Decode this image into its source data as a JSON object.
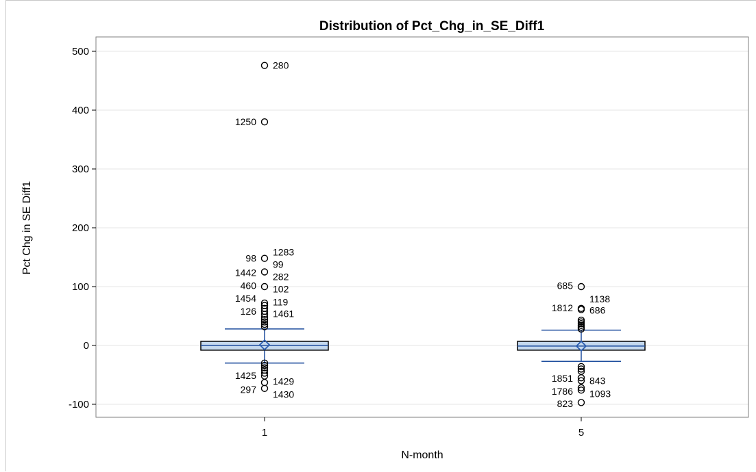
{
  "chart_data": {
    "type": "box",
    "title": "Distribution of Pct_Chg_in_SE_Diff1",
    "xlabel": "N-month",
    "ylabel": "Pct Chg in SE Diff1",
    "ylim": [
      -110,
      510
    ],
    "yticks": [
      -100,
      0,
      100,
      200,
      300,
      400,
      500
    ],
    "grid": "horizontal",
    "colors": {
      "box_fill": "#c5d9ee",
      "box_edge": "#000000",
      "whisker": "#1f4e9e",
      "mean_marker": "#2a5db0",
      "outlier": "#000000",
      "gridline": "#e6e6e6",
      "plot_border": "#7f7f7f"
    },
    "categories": [
      "1",
      "5"
    ],
    "boxes": [
      {
        "category": "1",
        "q1": -8,
        "median": 0,
        "q3": 7,
        "mean": 1,
        "whisker_low": -30,
        "whisker_high": 28,
        "outliers": [
          476,
          380,
          148,
          125,
          100,
          72,
          68,
          63,
          58,
          53,
          48,
          44,
          40,
          36,
          32,
          -30,
          -34,
          -38,
          -42,
          -47,
          -52,
          -63,
          -73
        ],
        "outlier_labels": [
          {
            "text": "280",
            "y": 476,
            "side": "right"
          },
          {
            "text": "1250",
            "y": 380,
            "side": "left"
          },
          {
            "text": "1283",
            "y": 159,
            "side": "right"
          },
          {
            "text": "98",
            "y": 148,
            "side": "left"
          },
          {
            "text": "99",
            "y": 138,
            "side": "right"
          },
          {
            "text": "1442",
            "y": 124,
            "side": "left"
          },
          {
            "text": "282",
            "y": 117,
            "side": "right"
          },
          {
            "text": "460",
            "y": 102,
            "side": "left"
          },
          {
            "text": "102",
            "y": 96,
            "side": "right"
          },
          {
            "text": "1454",
            "y": 80,
            "side": "left"
          },
          {
            "text": "119",
            "y": 74,
            "side": "right"
          },
          {
            "text": "126",
            "y": 58,
            "side": "left"
          },
          {
            "text": "1461",
            "y": 54,
            "side": "right"
          },
          {
            "text": "1425",
            "y": -51,
            "side": "left"
          },
          {
            "text": "1429",
            "y": -61,
            "side": "right"
          },
          {
            "text": "297",
            "y": -75,
            "side": "left"
          },
          {
            "text": "1430",
            "y": -83,
            "side": "right"
          }
        ]
      },
      {
        "category": "5",
        "q1": -8,
        "median": -1,
        "q3": 7,
        "mean": -1,
        "whisker_low": -27,
        "whisker_high": 26,
        "outliers": [
          100,
          63,
          61,
          43,
          40,
          37,
          34,
          31,
          28,
          -36,
          -40,
          -44,
          -55,
          -60,
          -72,
          -76,
          -97
        ],
        "outlier_labels": [
          {
            "text": "685",
            "y": 102,
            "side": "left"
          },
          {
            "text": "1138",
            "y": 79,
            "side": "right"
          },
          {
            "text": "1812",
            "y": 64,
            "side": "left"
          },
          {
            "text": "686",
            "y": 60,
            "side": "right"
          },
          {
            "text": "1851",
            "y": -56,
            "side": "left"
          },
          {
            "text": "843",
            "y": -60,
            "side": "right"
          },
          {
            "text": "1786",
            "y": -78,
            "side": "left"
          },
          {
            "text": "1093",
            "y": -82,
            "side": "right"
          },
          {
            "text": "823",
            "y": -99,
            "side": "left"
          }
        ]
      }
    ]
  }
}
